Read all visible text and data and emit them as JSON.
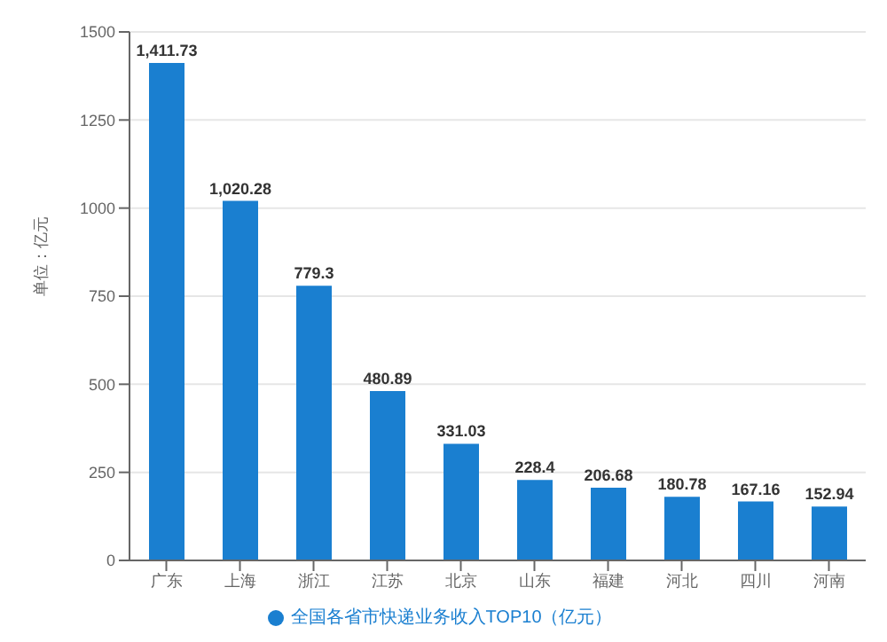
{
  "chart_data": {
    "type": "bar",
    "ylabel": "单位：亿元",
    "categories": [
      "广东",
      "上海",
      "浙江",
      "江苏",
      "北京",
      "山东",
      "福建",
      "河北",
      "四川",
      "河南"
    ],
    "series": [
      {
        "name": "全国各省市快递业务收入TOP10（亿元）",
        "color": "#1a7fd0",
        "values": [
          1411.73,
          1020.28,
          779.3,
          480.89,
          331.03,
          228.4,
          206.68,
          180.78,
          167.16,
          152.94
        ],
        "value_labels": [
          "1,411.73",
          "1,020.28",
          "779.3",
          "480.89",
          "331.03",
          "228.4",
          "206.68",
          "180.78",
          "167.16",
          "152.94"
        ]
      }
    ],
    "ylim": [
      0,
      1500
    ],
    "yticks": [
      0,
      250,
      500,
      750,
      1000,
      1250,
      1500
    ],
    "grid": "y",
    "legend": "bottom"
  }
}
